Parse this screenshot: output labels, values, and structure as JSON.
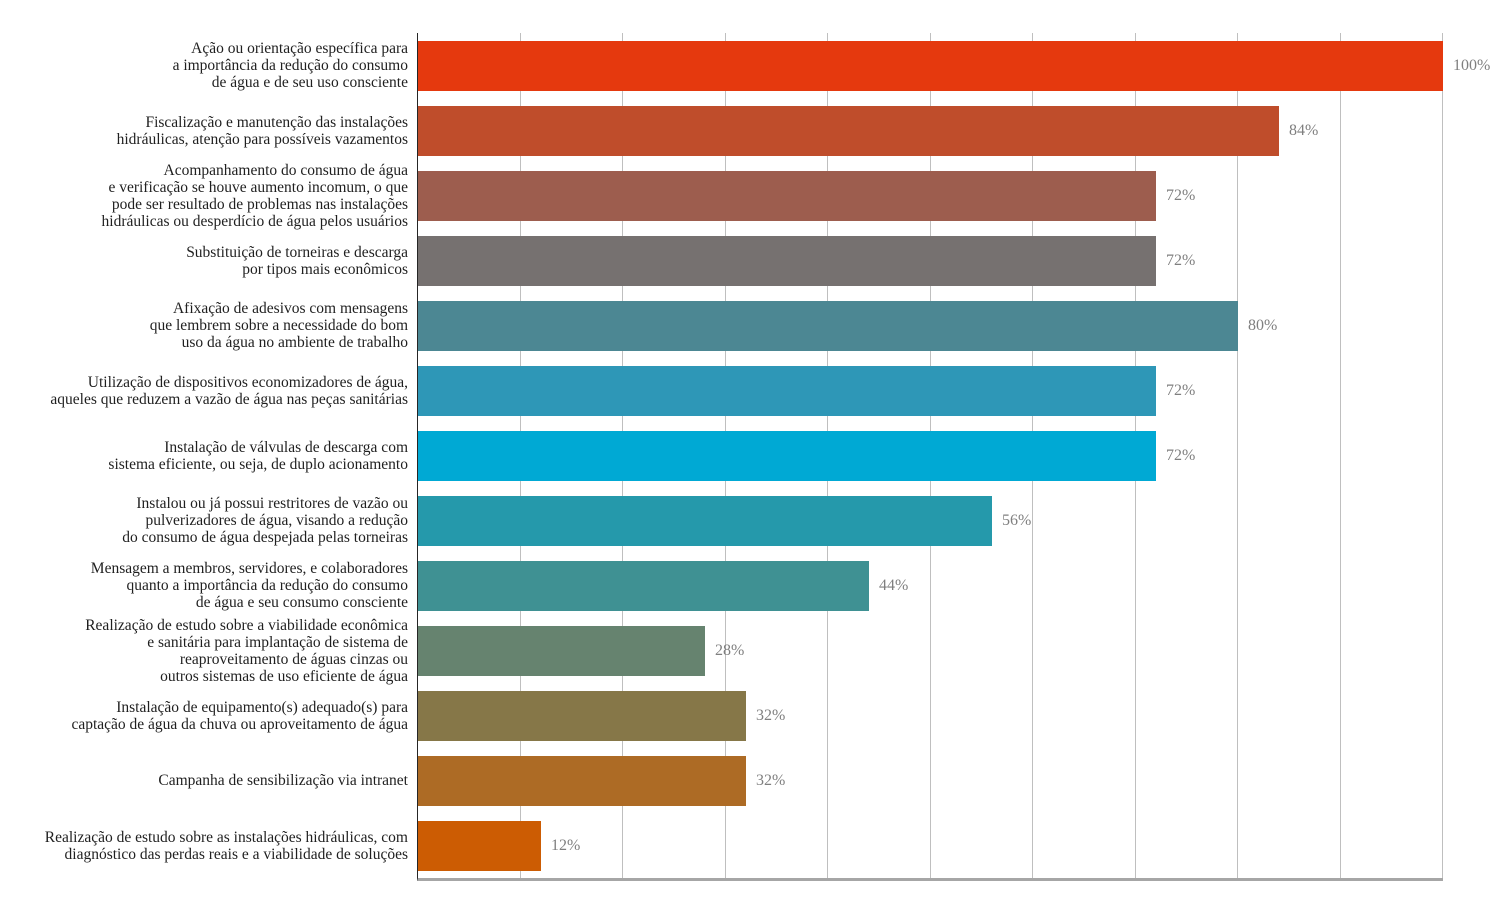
{
  "chart_data": {
    "type": "bar",
    "orientation": "horizontal",
    "title": "",
    "xlabel": "",
    "ylabel": "",
    "xlim": [
      0,
      100
    ],
    "grid_step": 10,
    "grid": true,
    "legend": false,
    "categories": [
      "Ação ou orientação específica para\na importância da redução do consumo\nde água e de seu uso consciente",
      "Fiscalização e manutenção das instalações\nhidráulicas, atenção para possíveis vazamentos",
      "Acompanhamento do consumo de água\ne verificação se houve aumento incomum, o que\npode ser resultado de problemas nas instalações\nhidráulicas ou desperdício de água pelos usuários",
      "Substituição de torneiras e descarga\npor tipos mais econômicos",
      "Afixação de adesivos com mensagens\nque lembrem sobre a necessidade do bom\nuso da água no ambiente de trabalho",
      "Utilização de dispositivos economizadores de água,\naqueles que reduzem a vazão de água nas peças sanitárias",
      "Instalação de válvulas de descarga com\nsistema eficiente, ou seja, de duplo acionamento",
      "Instalou ou já possui restritores de vazão ou\npulverizadores de água, visando a redução\ndo consumo de água despejada pelas torneiras",
      "Mensagem a membros, servidores, e colaboradores\nquanto a importância da redução do consumo\nde água e seu consumo consciente",
      "Realização de estudo sobre a viabilidade econômica\ne sanitária para implantação de sistema de\nreaproveitamento de águas cinzas ou\noutros sistemas de uso eficiente de água",
      "Instalação de equipamento(s) adequado(s) para\ncaptação de água da chuva ou aproveitamento de água",
      "Campanha de sensibilização via intranet",
      "Realização de estudo sobre as instalações hidráulicas, com\ndiagnóstico das perdas reais e a viabilidade de soluções"
    ],
    "values": [
      100,
      84,
      72,
      72,
      80,
      72,
      72,
      56,
      44,
      28,
      32,
      32,
      12
    ],
    "value_labels": [
      "100%",
      "84%",
      "72%",
      "72%",
      "80%",
      "72%",
      "72%",
      "56%",
      "44%",
      "28%",
      "32%",
      "32%",
      "12%"
    ],
    "bar_colors": [
      "#e5390e",
      "#bf4d2b",
      "#9d5d4e",
      "#767170",
      "#4c8793",
      "#2e97b7",
      "#00a9d4",
      "#2599ab",
      "#3f9193",
      "#66836f",
      "#867748",
      "#ad6b25",
      "#cc5c03"
    ]
  },
  "style": {
    "background": "#ffffff",
    "category_label_color": "#1f1f1f",
    "value_label_color": "#7f7f7f",
    "gridline_color": "#bfbfbf",
    "axis_line_color": "#262626",
    "baseline_color": "#a6a6a6"
  }
}
